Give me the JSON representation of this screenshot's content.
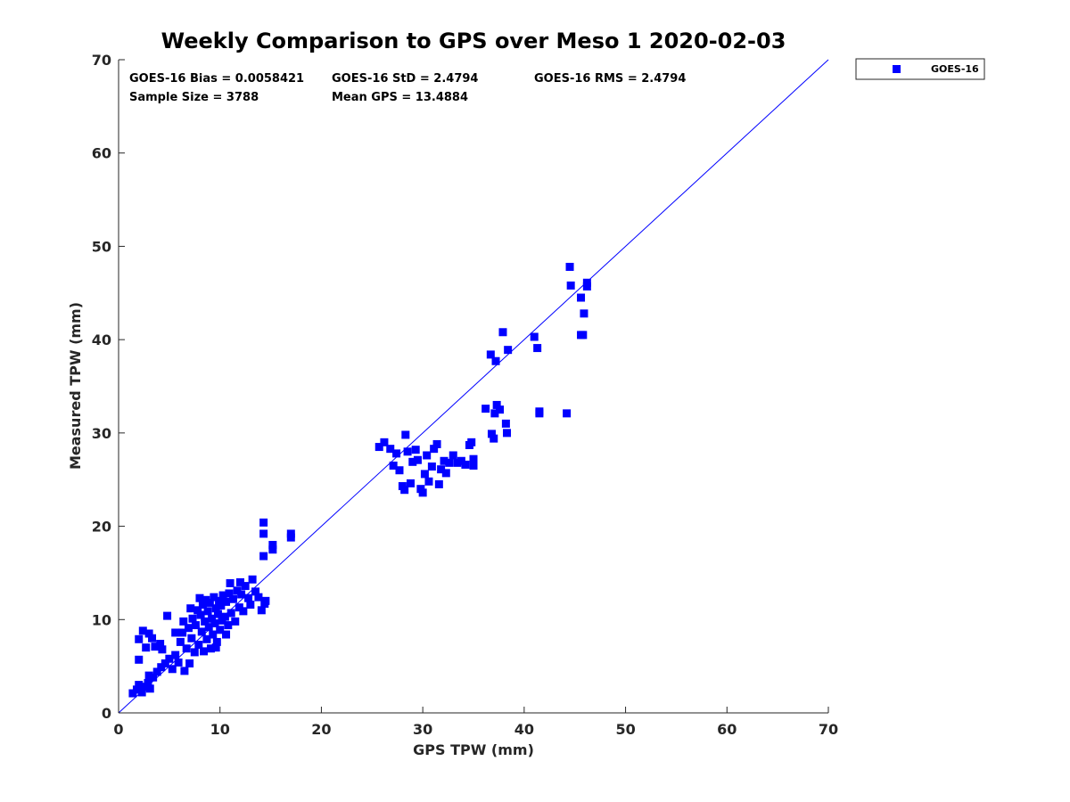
{
  "chart_data": {
    "type": "scatter",
    "title": "Weekly Comparison to GPS over Meso 1 2020-02-03",
    "xlabel": "GPS TPW (mm)",
    "ylabel": "Measured TPW (mm)",
    "xlim": [
      0,
      70
    ],
    "ylim": [
      0,
      70
    ],
    "xticks": [
      "0",
      "10",
      "20",
      "30",
      "40",
      "50",
      "60",
      "70"
    ],
    "yticks": [
      "0",
      "10",
      "20",
      "30",
      "40",
      "50",
      "60",
      "70"
    ],
    "grid": false,
    "legend_position": "outside-top-right",
    "reference_line": {
      "type": "one-to-one",
      "x": [
        0,
        70
      ],
      "y": [
        0,
        70
      ]
    },
    "stats": [
      "GOES-16 Bias = 0.0058421",
      "GOES-16 StD = 2.4794",
      "GOES-16 RMS = 2.4794",
      "Sample Size = 3788",
      "Mean GPS = 13.4884"
    ],
    "series": [
      {
        "name": "GOES-16",
        "color": "#0000ff",
        "marker": "square",
        "points": [
          [
            1.4,
            2.1
          ],
          [
            1.8,
            2.5
          ],
          [
            2.0,
            3.0
          ],
          [
            2.3,
            2.2
          ],
          [
            2.6,
            2.8
          ],
          [
            2.9,
            3.2
          ],
          [
            3.1,
            2.6
          ],
          [
            2.0,
            5.7
          ],
          [
            2.0,
            7.9
          ],
          [
            2.4,
            8.8
          ],
          [
            2.7,
            7.0
          ],
          [
            3.0,
            8.5
          ],
          [
            3.3,
            8.0
          ],
          [
            3.6,
            7.1
          ],
          [
            4.1,
            7.4
          ],
          [
            4.3,
            6.8
          ],
          [
            4.8,
            10.4
          ],
          [
            3.0,
            4.0
          ],
          [
            3.4,
            3.8
          ],
          [
            3.8,
            4.4
          ],
          [
            4.2,
            4.9
          ],
          [
            4.6,
            5.3
          ],
          [
            5.0,
            5.8
          ],
          [
            5.3,
            4.7
          ],
          [
            5.6,
            6.2
          ],
          [
            5.9,
            5.4
          ],
          [
            6.1,
            7.6
          ],
          [
            6.3,
            8.6
          ],
          [
            6.5,
            4.5
          ],
          [
            6.7,
            6.9
          ],
          [
            6.9,
            9.1
          ],
          [
            7.0,
            5.3
          ],
          [
            7.2,
            8.0
          ],
          [
            7.3,
            10.1
          ],
          [
            7.5,
            6.5
          ],
          [
            7.6,
            9.4
          ],
          [
            7.8,
            11.0
          ],
          [
            7.9,
            7.3
          ],
          [
            8.1,
            10.5
          ],
          [
            8.2,
            8.7
          ],
          [
            8.3,
            11.6
          ],
          [
            8.4,
            6.6
          ],
          [
            8.5,
            9.8
          ],
          [
            8.6,
            12.1
          ],
          [
            8.7,
            7.9
          ],
          [
            8.8,
            10.9
          ],
          [
            8.9,
            9.2
          ],
          [
            9.0,
            11.8
          ],
          [
            9.1,
            6.9
          ],
          [
            9.2,
            10.1
          ],
          [
            9.3,
            8.4
          ],
          [
            9.4,
            12.4
          ],
          [
            9.5,
            9.6
          ],
          [
            9.6,
            11.2
          ],
          [
            9.7,
            7.6
          ],
          [
            9.8,
            10.6
          ],
          [
            9.9,
            12.0
          ],
          [
            10.0,
            8.9
          ],
          [
            10.1,
            11.5
          ],
          [
            10.2,
            9.9
          ],
          [
            10.3,
            12.6
          ],
          [
            10.5,
            10.3
          ],
          [
            10.6,
            11.9
          ],
          [
            10.8,
            9.4
          ],
          [
            10.9,
            12.8
          ],
          [
            11.1,
            10.7
          ],
          [
            11.3,
            12.2
          ],
          [
            11.5,
            9.8
          ],
          [
            11.7,
            13.1
          ],
          [
            11.9,
            11.3
          ],
          [
            12.1,
            12.7
          ],
          [
            12.3,
            10.9
          ],
          [
            12.5,
            13.6
          ],
          [
            12.8,
            12.3
          ],
          [
            13.0,
            11.6
          ],
          [
            13.2,
            14.3
          ],
          [
            13.5,
            13.0
          ],
          [
            13.8,
            12.4
          ],
          [
            14.1,
            11.0
          ],
          [
            14.4,
            11.7
          ],
          [
            14.5,
            12.0
          ],
          [
            6.4,
            9.8
          ],
          [
            7.1,
            11.2
          ],
          [
            8.0,
            12.3
          ],
          [
            5.6,
            8.6
          ],
          [
            9.6,
            7.0
          ],
          [
            10.6,
            8.4
          ],
          [
            11.0,
            13.9
          ],
          [
            12.0,
            14.0
          ],
          [
            14.3,
            20.4
          ],
          [
            14.3,
            19.2
          ],
          [
            14.3,
            16.8
          ],
          [
            15.2,
            18.0
          ],
          [
            15.2,
            17.5
          ],
          [
            17.0,
            19.2
          ],
          [
            17.0,
            18.8
          ],
          [
            25.7,
            28.5
          ],
          [
            26.2,
            29.0
          ],
          [
            26.8,
            28.3
          ],
          [
            27.1,
            26.5
          ],
          [
            27.4,
            27.8
          ],
          [
            27.7,
            26.0
          ],
          [
            28.0,
            24.3
          ],
          [
            28.2,
            23.9
          ],
          [
            28.3,
            29.8
          ],
          [
            28.5,
            28.0
          ],
          [
            28.8,
            24.6
          ],
          [
            29.0,
            26.9
          ],
          [
            29.3,
            28.2
          ],
          [
            29.5,
            27.1
          ],
          [
            29.8,
            24.0
          ],
          [
            30.0,
            23.6
          ],
          [
            30.2,
            25.6
          ],
          [
            30.4,
            27.6
          ],
          [
            30.6,
            24.8
          ],
          [
            30.9,
            26.4
          ],
          [
            31.1,
            28.3
          ],
          [
            31.4,
            28.8
          ],
          [
            31.6,
            24.5
          ],
          [
            31.8,
            26.1
          ],
          [
            32.1,
            27.0
          ],
          [
            32.3,
            25.7
          ],
          [
            32.6,
            26.8
          ],
          [
            33.0,
            27.6
          ],
          [
            33.4,
            26.8
          ],
          [
            33.8,
            27.0
          ],
          [
            34.2,
            26.6
          ],
          [
            34.8,
            29.0
          ],
          [
            35.0,
            27.2
          ],
          [
            35.0,
            26.5
          ],
          [
            34.6,
            28.7
          ],
          [
            36.2,
            32.6
          ],
          [
            36.8,
            29.9
          ],
          [
            37.0,
            29.4
          ],
          [
            37.1,
            32.1
          ],
          [
            37.3,
            33.0
          ],
          [
            37.6,
            32.5
          ],
          [
            38.2,
            31.0
          ],
          [
            38.3,
            30.0
          ],
          [
            41.5,
            32.3
          ],
          [
            41.5,
            32.1
          ],
          [
            44.2,
            32.1
          ],
          [
            36.7,
            38.4
          ],
          [
            37.2,
            37.7
          ],
          [
            37.9,
            40.8
          ],
          [
            38.4,
            38.9
          ],
          [
            41.0,
            40.3
          ],
          [
            41.3,
            39.1
          ],
          [
            44.5,
            47.8
          ],
          [
            44.6,
            45.8
          ],
          [
            45.6,
            44.5
          ],
          [
            45.9,
            42.8
          ],
          [
            45.6,
            40.5
          ],
          [
            45.8,
            40.5
          ],
          [
            46.2,
            46.1
          ],
          [
            46.2,
            45.7
          ]
        ]
      }
    ]
  }
}
